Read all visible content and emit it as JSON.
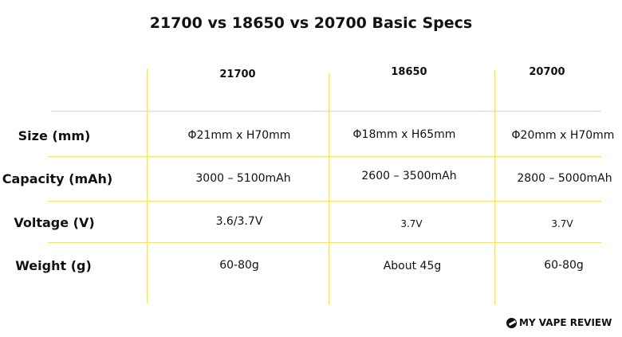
{
  "title": "21700 vs 18650 vs 20700 Basic Specs",
  "columns": [
    "21700",
    "18650",
    "20700"
  ],
  "rows": [
    {
      "label": "Size (mm)",
      "values": [
        "Φ21mm x H70mm",
        "Φ18mm x H65mm",
        "Φ20mm x H70mm"
      ]
    },
    {
      "label": "Capacity (mAh)",
      "values": [
        "3000 – 5100mAh",
        "2600 – 3500mAh",
        "2800 – 5000mAh"
      ]
    },
    {
      "label": "Voltage (V)",
      "values": [
        "3.6/3.7V",
        "3.7V",
        "3.7V"
      ]
    },
    {
      "label": "Weight (g)",
      "values": [
        "60-80g",
        "About 45g",
        "60-80g"
      ]
    }
  ],
  "brand": "MY VAPE REVIEW",
  "colors": {
    "grid": "#f3e266",
    "text": "#111111",
    "background": "#ffffff"
  },
  "icons": {
    "brand": "brand-logo-icon"
  }
}
